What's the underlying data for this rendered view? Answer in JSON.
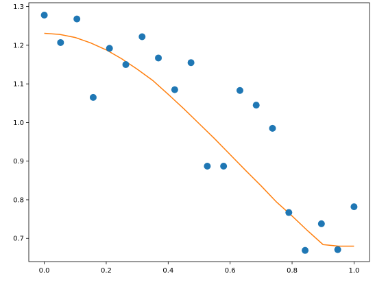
{
  "chart_data": {
    "type": "scatter",
    "title": "",
    "xlabel": "",
    "ylabel": "",
    "xlim": [
      -0.05,
      1.05
    ],
    "ylim": [
      0.64,
      1.31
    ],
    "grid": false,
    "legend": "none",
    "xticks": [
      0.0,
      0.2,
      0.4,
      0.6,
      0.8,
      1.0
    ],
    "xtick_labels": [
      "0.0",
      "0.2",
      "0.4",
      "0.6",
      "0.8",
      "1.0"
    ],
    "yticks": [
      0.7,
      0.8,
      0.9,
      1.0,
      1.1,
      1.2,
      1.3
    ],
    "ytick_labels": [
      "0.7",
      "0.8",
      "0.9",
      "1.0",
      "1.1",
      "1.2",
      "1.3"
    ],
    "series": [
      {
        "kind": "scatter",
        "color": "#1f77b4",
        "x": [
          0.0,
          0.0526,
          0.1053,
          0.1579,
          0.2105,
          0.2632,
          0.3158,
          0.3684,
          0.4211,
          0.4737,
          0.5263,
          0.5789,
          0.6316,
          0.6842,
          0.7368,
          0.7895,
          0.8421,
          0.8947,
          0.9474,
          1.0
        ],
        "y": [
          1.278,
          1.207,
          1.268,
          1.065,
          1.192,
          1.15,
          1.222,
          1.167,
          1.085,
          1.155,
          0.887,
          0.887,
          1.083,
          1.045,
          0.985,
          0.767,
          0.669,
          0.738,
          0.671,
          0.782
        ]
      },
      {
        "kind": "line",
        "color": "#ff7f0e",
        "x": [
          0.0,
          0.05,
          0.1,
          0.15,
          0.2,
          0.25,
          0.3,
          0.35,
          0.4,
          0.45,
          0.5,
          0.55,
          0.6,
          0.65,
          0.7,
          0.75,
          0.8,
          0.85,
          0.9,
          0.95,
          1.0
        ],
        "y": [
          1.231,
          1.228,
          1.22,
          1.206,
          1.188,
          1.165,
          1.138,
          1.109,
          1.073,
          1.036,
          0.997,
          0.958,
          0.917,
          0.876,
          0.836,
          0.794,
          0.758,
          0.72,
          0.684,
          0.68,
          0.68
        ]
      }
    ]
  }
}
